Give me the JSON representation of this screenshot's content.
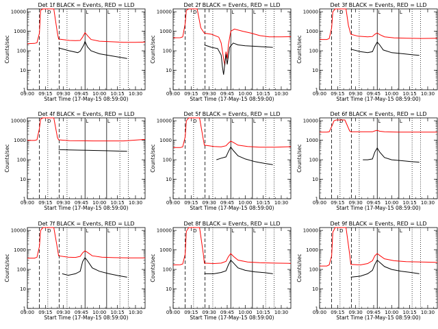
{
  "chart_data": {
    "type": "line",
    "shared": {
      "xlabel": "Start Time (17-May-15 08:59:00)",
      "ylabel": "Counts/sec",
      "x_ticks": [
        "09:00",
        "09:15",
        "09:30",
        "09:45",
        "10:00",
        "10:15",
        "10:30"
      ],
      "x_tick_minutes": [
        60,
        75,
        90,
        105,
        120,
        135,
        150
      ],
      "xlim_minutes": [
        60,
        158
      ],
      "y_ticks": [
        "1",
        "10",
        "100",
        "1000",
        "10000"
      ],
      "y_tick_values": [
        1,
        10,
        100,
        1000,
        10000
      ],
      "ylim": [
        1,
        14000
      ],
      "y_scale": "log",
      "series_colors": {
        "events": "#000000",
        "lld": "#ff0000"
      },
      "series_names": {
        "events": "Events",
        "lld": "LLD"
      },
      "dashed_vlines_minutes": [
        70,
        86.5
      ],
      "dotted_vlines_minutes": [
        77,
        93,
        137,
        144
      ],
      "solid_vlines_minutes": [
        108,
        126
      ],
      "corner_marks": [
        {
          "label": "D",
          "minute": 76
        },
        {
          "label": "L",
          "minute": 108
        },
        {
          "label": "L",
          "minute": 126
        }
      ]
    },
    "panels": [
      {
        "title": "Det 1f BLACK = Events, RED = LLD",
        "lld": [
          [
            60,
            230
          ],
          [
            66,
            240
          ],
          [
            68,
            260
          ],
          [
            70,
            800
          ],
          [
            71,
            12000
          ],
          [
            73,
            14000
          ],
          [
            82,
            14000
          ],
          [
            85,
            800
          ],
          [
            86,
            400
          ],
          [
            95,
            340
          ],
          [
            100,
            330
          ],
          [
            104,
            340
          ],
          [
            106,
            500
          ],
          [
            108,
            850
          ],
          [
            110,
            600
          ],
          [
            113,
            380
          ],
          [
            120,
            310
          ],
          [
            130,
            290
          ],
          [
            140,
            270
          ],
          [
            150,
            270
          ],
          [
            158,
            280
          ]
        ],
        "events": [
          [
            86,
            140
          ],
          [
            95,
            100
          ],
          [
            102,
            80
          ],
          [
            104,
            95
          ],
          [
            107,
            200
          ],
          [
            108,
            300
          ],
          [
            110,
            160
          ],
          [
            113,
            100
          ],
          [
            120,
            70
          ],
          [
            130,
            55
          ],
          [
            138,
            45
          ],
          [
            143,
            40
          ]
        ]
      },
      {
        "title": "Det 2f BLACK = Events, RED = LLD",
        "lld": [
          [
            60,
            460
          ],
          [
            66,
            470
          ],
          [
            68,
            520
          ],
          [
            70,
            2500
          ],
          [
            71,
            12000
          ],
          [
            73,
            14000
          ],
          [
            80,
            14000
          ],
          [
            83,
            1500
          ],
          [
            86,
            800
          ],
          [
            92,
            700
          ],
          [
            98,
            500
          ],
          [
            100,
            250
          ],
          [
            102,
            40
          ],
          [
            103,
            18
          ],
          [
            104,
            90
          ],
          [
            105,
            40
          ],
          [
            106,
            200
          ],
          [
            108,
            1000
          ],
          [
            111,
            1300
          ],
          [
            118,
            1000
          ],
          [
            125,
            800
          ],
          [
            132,
            600
          ],
          [
            140,
            520
          ],
          [
            150,
            520
          ],
          [
            158,
            530
          ]
        ],
        "events": [
          [
            86,
            200
          ],
          [
            92,
            150
          ],
          [
            97,
            130
          ],
          [
            100,
            60
          ],
          [
            101,
            15
          ],
          [
            102,
            6
          ],
          [
            104,
            70
          ],
          [
            105,
            20
          ],
          [
            107,
            150
          ],
          [
            110,
            250
          ],
          [
            114,
            200
          ],
          [
            120,
            180
          ],
          [
            128,
            170
          ],
          [
            135,
            160
          ],
          [
            143,
            150
          ]
        ]
      },
      {
        "title": "Det 3f BLACK = Events, RED = LLD",
        "lld": [
          [
            60,
            380
          ],
          [
            66,
            380
          ],
          [
            68,
            420
          ],
          [
            70,
            1500
          ],
          [
            71,
            10000
          ],
          [
            73,
            14000
          ],
          [
            82,
            14000
          ],
          [
            84,
            2000
          ],
          [
            86,
            700
          ],
          [
            92,
            560
          ],
          [
            100,
            520
          ],
          [
            104,
            540
          ],
          [
            106,
            700
          ],
          [
            108,
            820
          ],
          [
            110,
            680
          ],
          [
            114,
            520
          ],
          [
            122,
            460
          ],
          [
            132,
            440
          ],
          [
            145,
            430
          ],
          [
            158,
            440
          ]
        ],
        "events": [
          [
            86,
            120
          ],
          [
            94,
            90
          ],
          [
            100,
            80
          ],
          [
            104,
            90
          ],
          [
            106,
            170
          ],
          [
            108,
            280
          ],
          [
            110,
            200
          ],
          [
            113,
            110
          ],
          [
            120,
            80
          ],
          [
            130,
            70
          ],
          [
            138,
            62
          ],
          [
            143,
            58
          ]
        ]
      },
      {
        "title": "Det 4f BLACK = Events, RED = LLD",
        "lld": [
          [
            60,
            980
          ],
          [
            66,
            980
          ],
          [
            68,
            1050
          ],
          [
            70,
            4000
          ],
          [
            71,
            12000
          ],
          [
            73,
            14000
          ],
          [
            82,
            14000
          ],
          [
            85,
            1400
          ],
          [
            86,
            1050
          ],
          [
            95,
            950
          ],
          [
            105,
            940
          ],
          [
            115,
            920
          ],
          [
            125,
            920
          ],
          [
            140,
            920
          ],
          [
            158,
            1100
          ]
        ],
        "events": [
          [
            86,
            330
          ],
          [
            95,
            320
          ],
          [
            105,
            310
          ],
          [
            115,
            300
          ],
          [
            125,
            290
          ],
          [
            135,
            280
          ],
          [
            143,
            270
          ]
        ]
      },
      {
        "title": "Det 5f BLACK = Events, RED = LLD",
        "lld": [
          [
            60,
            420
          ],
          [
            66,
            420
          ],
          [
            68,
            460
          ],
          [
            70,
            1500
          ],
          [
            71,
            10000
          ],
          [
            73,
            14000
          ],
          [
            82,
            14000
          ],
          [
            85,
            1200
          ],
          [
            86,
            560
          ],
          [
            94,
            480
          ],
          [
            100,
            460
          ],
          [
            104,
            520
          ],
          [
            106,
            700
          ],
          [
            108,
            900
          ],
          [
            110,
            780
          ],
          [
            114,
            560
          ],
          [
            122,
            480
          ],
          [
            132,
            440
          ],
          [
            145,
            440
          ],
          [
            158,
            470
          ]
        ],
        "events": [
          [
            96,
            100
          ],
          [
            100,
            120
          ],
          [
            104,
            140
          ],
          [
            106,
            260
          ],
          [
            108,
            450
          ],
          [
            110,
            300
          ],
          [
            114,
            160
          ],
          [
            120,
            110
          ],
          [
            128,
            80
          ],
          [
            136,
            65
          ],
          [
            143,
            56
          ]
        ]
      },
      {
        "title": "Det 6f BLACK = Events, RED = LLD",
        "lld": [
          [
            60,
            2600
          ],
          [
            66,
            2600
          ],
          [
            68,
            2700
          ],
          [
            70,
            5000
          ],
          [
            72,
            10000
          ],
          [
            74,
            11000
          ],
          [
            81,
            11000
          ],
          [
            85,
            3000
          ],
          [
            86,
            2700
          ],
          [
            95,
            2700
          ],
          [
            104,
            2700
          ],
          [
            106,
            3000
          ],
          [
            108,
            3200
          ],
          [
            110,
            2900
          ],
          [
            114,
            2700
          ],
          [
            125,
            2600
          ],
          [
            140,
            2600
          ],
          [
            158,
            2600
          ]
        ],
        "events": [
          [
            96,
            100
          ],
          [
            100,
            100
          ],
          [
            104,
            110
          ],
          [
            106,
            250
          ],
          [
            108,
            400
          ],
          [
            110,
            250
          ],
          [
            114,
            130
          ],
          [
            120,
            100
          ],
          [
            128,
            90
          ],
          [
            136,
            80
          ],
          [
            143,
            75
          ]
        ]
      },
      {
        "title": "Det 7f BLACK = Events, RED = LLD",
        "lld": [
          [
            60,
            380
          ],
          [
            66,
            380
          ],
          [
            68,
            420
          ],
          [
            70,
            1500
          ],
          [
            71,
            10000
          ],
          [
            73,
            14000
          ],
          [
            82,
            14000
          ],
          [
            85,
            1200
          ],
          [
            86,
            500
          ],
          [
            94,
            420
          ],
          [
            100,
            410
          ],
          [
            104,
            470
          ],
          [
            106,
            700
          ],
          [
            108,
            900
          ],
          [
            110,
            750
          ],
          [
            114,
            500
          ],
          [
            122,
            420
          ],
          [
            132,
            400
          ],
          [
            145,
            390
          ],
          [
            158,
            390
          ]
        ],
        "events": [
          [
            89,
            60
          ],
          [
            94,
            50
          ],
          [
            100,
            60
          ],
          [
            104,
            80
          ],
          [
            106,
            250
          ],
          [
            108,
            400
          ],
          [
            110,
            280
          ],
          [
            114,
            120
          ],
          [
            120,
            80
          ],
          [
            128,
            60
          ],
          [
            136,
            48
          ],
          [
            143,
            40
          ]
        ]
      },
      {
        "title": "Det 8f BLACK = Events, RED = LLD",
        "lld": [
          [
            60,
            170
          ],
          [
            66,
            175
          ],
          [
            68,
            190
          ],
          [
            70,
            600
          ],
          [
            71,
            9000
          ],
          [
            73,
            14000
          ],
          [
            82,
            14000
          ],
          [
            85,
            700
          ],
          [
            86,
            210
          ],
          [
            94,
            200
          ],
          [
            100,
            210
          ],
          [
            104,
            260
          ],
          [
            106,
            450
          ],
          [
            108,
            650
          ],
          [
            110,
            480
          ],
          [
            114,
            300
          ],
          [
            122,
            240
          ],
          [
            132,
            220
          ],
          [
            145,
            210
          ],
          [
            158,
            205
          ]
        ],
        "events": [
          [
            86,
            60
          ],
          [
            94,
            60
          ],
          [
            100,
            70
          ],
          [
            104,
            85
          ],
          [
            106,
            170
          ],
          [
            108,
            300
          ],
          [
            110,
            220
          ],
          [
            114,
            120
          ],
          [
            120,
            90
          ],
          [
            128,
            75
          ],
          [
            136,
            68
          ],
          [
            143,
            60
          ]
        ]
      },
      {
        "title": "Det 9f BLACK = Events, RED = LLD",
        "lld": [
          [
            60,
            150
          ],
          [
            66,
            150
          ],
          [
            68,
            170
          ],
          [
            70,
            500
          ],
          [
            71,
            8000
          ],
          [
            73,
            14000
          ],
          [
            82,
            14000
          ],
          [
            85,
            600
          ],
          [
            86,
            180
          ],
          [
            94,
            170
          ],
          [
            100,
            200
          ],
          [
            104,
            280
          ],
          [
            106,
            500
          ],
          [
            108,
            650
          ],
          [
            110,
            520
          ],
          [
            114,
            350
          ],
          [
            122,
            280
          ],
          [
            132,
            250
          ],
          [
            145,
            240
          ],
          [
            158,
            230
          ]
        ],
        "events": [
          [
            86,
            40
          ],
          [
            94,
            45
          ],
          [
            100,
            60
          ],
          [
            104,
            90
          ],
          [
            106,
            180
          ],
          [
            108,
            300
          ],
          [
            110,
            230
          ],
          [
            114,
            140
          ],
          [
            120,
            100
          ],
          [
            128,
            80
          ],
          [
            136,
            70
          ],
          [
            143,
            60
          ]
        ]
      }
    ]
  }
}
